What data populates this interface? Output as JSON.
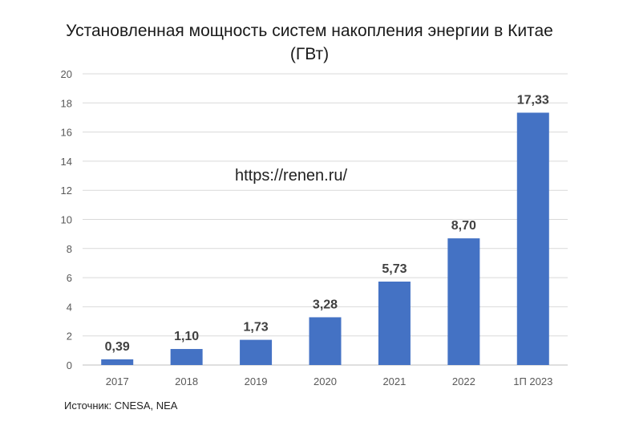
{
  "title_line1": "Установленная мощность систем накопления энергии в Китае",
  "title_line2": "(ГВт)",
  "watermark": "https://renen.ru/",
  "source": "Источник: CNESA, NEA",
  "colors": {
    "bar": "#4472C4",
    "grid": "#d9d9d9",
    "axis": "#bfbfbf"
  },
  "chart_data": {
    "type": "bar",
    "title": "Установленная мощность систем накопления энергии в Китае (ГВт)",
    "categories": [
      "2017",
      "2018",
      "2019",
      "2020",
      "2021",
      "2022",
      "1П 2023"
    ],
    "values": [
      0.39,
      1.1,
      1.73,
      3.28,
      5.73,
      8.7,
      17.33
    ],
    "value_labels": [
      "0,39",
      "1,10",
      "1,73",
      "3,28",
      "5,73",
      "8,70",
      "17,33"
    ],
    "yticks": [
      0,
      2,
      4,
      6,
      8,
      10,
      12,
      14,
      16,
      18,
      20
    ],
    "ylim": [
      0,
      20
    ],
    "xlabel": "",
    "ylabel": "",
    "grid": true,
    "legend": "none"
  }
}
